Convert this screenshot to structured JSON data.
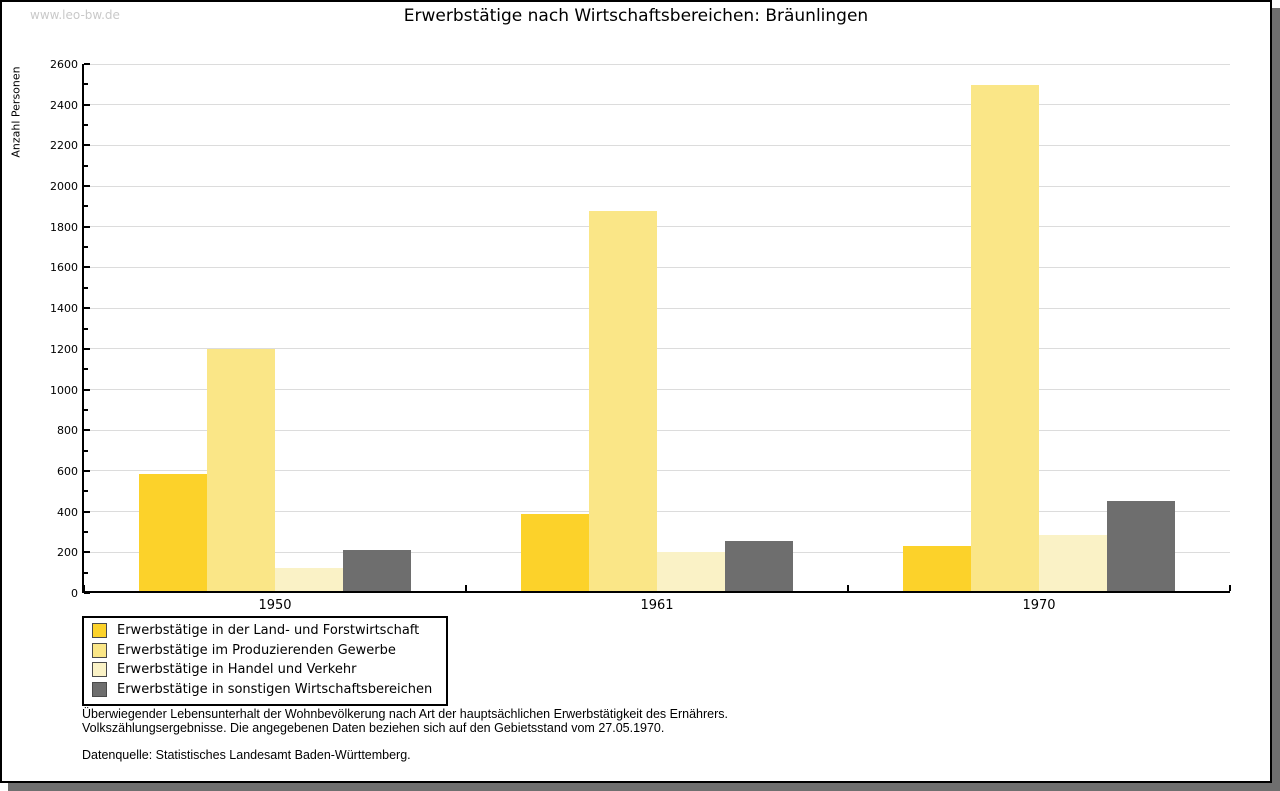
{
  "watermark": "www.leo-bw.de",
  "title": "Erwerbstätige nach Wirtschaftsbereichen: Bräunlingen",
  "chart_data": {
    "type": "bar",
    "title": "Erwerbstätige nach Wirtschaftsbereichen: Bräunlingen",
    "xlabel": "",
    "ylabel": "Anzahl Personen",
    "categories": [
      "1950",
      "1961",
      "1970"
    ],
    "series": [
      {
        "name": "Erwerbstätige in der Land- und Forstwirtschaft",
        "color": "#fcd22a",
        "values": [
          580,
          385,
          225
        ]
      },
      {
        "name": "Erwerbstätige im Produzierenden Gewerbe",
        "color": "#fae687",
        "values": [
          1195,
          1875,
          2490
        ]
      },
      {
        "name": "Erwerbstätige in Handel und Verkehr",
        "color": "#faf2c6",
        "values": [
          120,
          195,
          280
        ]
      },
      {
        "name": "Erwerbstätige in sonstigen Wirtschaftsbereichen",
        "color": "#6e6e6e",
        "values": [
          205,
          250,
          445
        ]
      }
    ],
    "ylim": [
      0,
      2600
    ],
    "ytick_step": 200,
    "yminor_step": 100,
    "grid": "horizontal-major",
    "legend_position": "bottom-left",
    "gridline_color": "#dcdcdc"
  },
  "footnotes": {
    "line1": "Überwiegender Lebensunterhalt der Wohnbevölkerung nach Art der hauptsächlichen Erwerbstätigkeit des Ernährers.",
    "line2": "Volkszählungsergebnisse. Die angegebenen Daten beziehen sich auf den Gebietsstand vom 27.05.1970.",
    "source": "Datenquelle: Statistisches Landesamt Baden-Württemberg."
  }
}
